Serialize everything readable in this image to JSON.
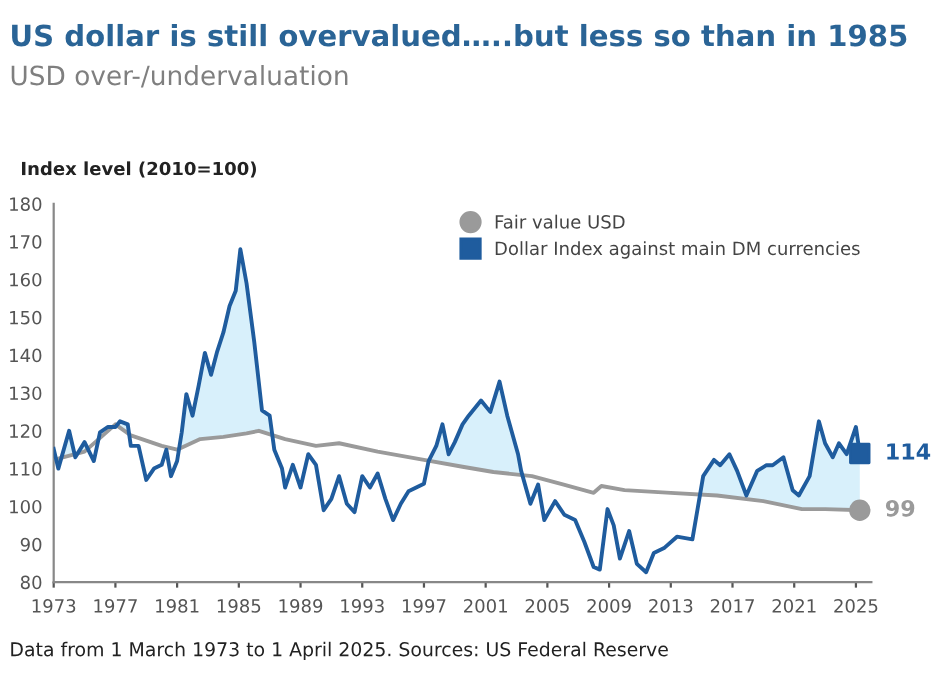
{
  "chart_data": {
    "type": "line",
    "title": "US dollar is still overvalued…..but less so than in 1985",
    "subtitle": "USD over-/undervaluation",
    "ylabel": "Index level (2010=100)",
    "annotations": [
      "Data from 1 March 1973 to 1 April 2025. Sources: US Federal Reserve"
    ],
    "xlim": [
      1973,
      2026
    ],
    "xticks": [
      1973,
      1977,
      1981,
      1985,
      1989,
      1993,
      1997,
      2001,
      2005,
      2009,
      2013,
      2017,
      2021,
      2025
    ],
    "ylim": [
      80,
      180
    ],
    "yticks": [
      80,
      90,
      100,
      110,
      120,
      130,
      140,
      150,
      160,
      170,
      180
    ],
    "grid": false,
    "legend": "top right",
    "series": [
      {
        "name": "Fair value USD",
        "color": "#9a9a9a",
        "x": [
          1973,
          1975,
          1977,
          1978,
          1980,
          1981,
          1982.5,
          1984,
          1985.5,
          1986.3,
          1988,
          1990,
          1991.5,
          1994,
          1997,
          1999.5,
          2001.5,
          2004,
          2006,
          2008,
          2008.5,
          2010,
          2013,
          2016,
          2019,
          2021.5,
          2023,
          2025.25
        ],
        "values": [
          112.3,
          114.5,
          121.7,
          118.8,
          116,
          115,
          117.8,
          118.4,
          119.3,
          120,
          117.8,
          116,
          116.7,
          114.5,
          112.3,
          110.5,
          109.1,
          108,
          105.8,
          103.6,
          105.4,
          104.3,
          103.6,
          102.9,
          101.4,
          99.3,
          99.3,
          99
        ],
        "value_labels": [
          null,
          null,
          null,
          null,
          null,
          null,
          null,
          null,
          null,
          null,
          null,
          null,
          null,
          null,
          null,
          null,
          null,
          null,
          null,
          null,
          null,
          null,
          null,
          null,
          null,
          null,
          null,
          "99"
        ]
      },
      {
        "name": "Dollar Index against main DM currencies",
        "color": "#1f5c9e",
        "x": [
          1973.0,
          1973.3,
          1974.0,
          1974.4,
          1975.0,
          1975.6,
          1976.0,
          1976.5,
          1977.0,
          1977.3,
          1977.8,
          1978.0,
          1978.5,
          1979.0,
          1979.5,
          1980.0,
          1980.3,
          1980.6,
          1981.0,
          1981.3,
          1981.6,
          1982.0,
          1982.4,
          1982.8,
          1983.2,
          1983.6,
          1984.0,
          1984.4,
          1984.8,
          1985.1,
          1985.5,
          1986.0,
          1986.5,
          1987.0,
          1987.3,
          1987.8,
          1988.0,
          1988.5,
          1989.0,
          1989.5,
          1990.0,
          1990.5,
          1991.0,
          1991.5,
          1992.0,
          1992.5,
          1993.0,
          1993.5,
          1994.0,
          1994.5,
          1995.0,
          1995.5,
          1996.0,
          1997.0,
          1997.3,
          1997.8,
          1998.2,
          1998.6,
          1999.0,
          1999.5,
          1999.9,
          2000.7,
          2001.3,
          2001.9,
          2002.4,
          2003.1,
          2003.3,
          2003.9,
          2004.4,
          2004.8,
          2005.5,
          2006.1,
          2006.8,
          2007.4,
          2008.0,
          2008.4,
          2008.9,
          2009.3,
          2009.7,
          2010.3,
          2010.8,
          2011.4,
          2011.9,
          2012.6,
          2013.4,
          2014.4,
          2015.1,
          2015.8,
          2016.2,
          2016.8,
          2017.3,
          2017.9,
          2018.6,
          2019.2,
          2019.6,
          2020.3,
          2020.9,
          2021.3,
          2022.0,
          2022.6,
          2023.0,
          2023.5,
          2023.9,
          2024.4,
          2025.0,
          2025.25
        ],
        "values": [
          115.2,
          110,
          120,
          113,
          117,
          112,
          119.6,
          121,
          121,
          122.5,
          121.7,
          116,
          116,
          107,
          110,
          111,
          115,
          108,
          112,
          119.6,
          129.7,
          124,
          132,
          140.6,
          134.8,
          141,
          146,
          153,
          157,
          168,
          159,
          143.5,
          125.4,
          124,
          115,
          110,
          105,
          111,
          105,
          113.8,
          111,
          99,
          102,
          108,
          100.7,
          98.5,
          108,
          105,
          108.7,
          102,
          96.4,
          100.7,
          104,
          106,
          112,
          116,
          121.7,
          113.8,
          117,
          121.7,
          124,
          128,
          125,
          133,
          124,
          113.8,
          109.4,
          100.7,
          105.8,
          96.4,
          101.4,
          97.8,
          96.4,
          90.6,
          84,
          83.3,
          99.3,
          95,
          86.2,
          93.5,
          84.8,
          82.6,
          87.7,
          89.1,
          92,
          91.3,
          108,
          112.3,
          110.9,
          113.8,
          109.4,
          102.9,
          109.4,
          110.9,
          110.9,
          113,
          104.3,
          102.9,
          108,
          122.5,
          116.7,
          113,
          116.7,
          113.8,
          121,
          114
        ],
        "value_labels": [
          null,
          null,
          null,
          null,
          null,
          null,
          null,
          null,
          null,
          null,
          null,
          null,
          null,
          null,
          null,
          null,
          null,
          null,
          null,
          null,
          null,
          null,
          null,
          null,
          null,
          null,
          null,
          null,
          null,
          null,
          null,
          null,
          null,
          null,
          null,
          null,
          null,
          null,
          null,
          null,
          null,
          null,
          null,
          null,
          null,
          null,
          null,
          null,
          null,
          null,
          null,
          null,
          null,
          null,
          null,
          null,
          null,
          null,
          null,
          null,
          null,
          null,
          null,
          null,
          null,
          null,
          null,
          null,
          null,
          null,
          null,
          null,
          null,
          null,
          null,
          null,
          null,
          null,
          null,
          null,
          null,
          null,
          null,
          null,
          null,
          null,
          null,
          null,
          null,
          null,
          null,
          null,
          null,
          null,
          null,
          null,
          null,
          null,
          null,
          null,
          null,
          null,
          null,
          null,
          null,
          "114"
        ]
      }
    ]
  }
}
